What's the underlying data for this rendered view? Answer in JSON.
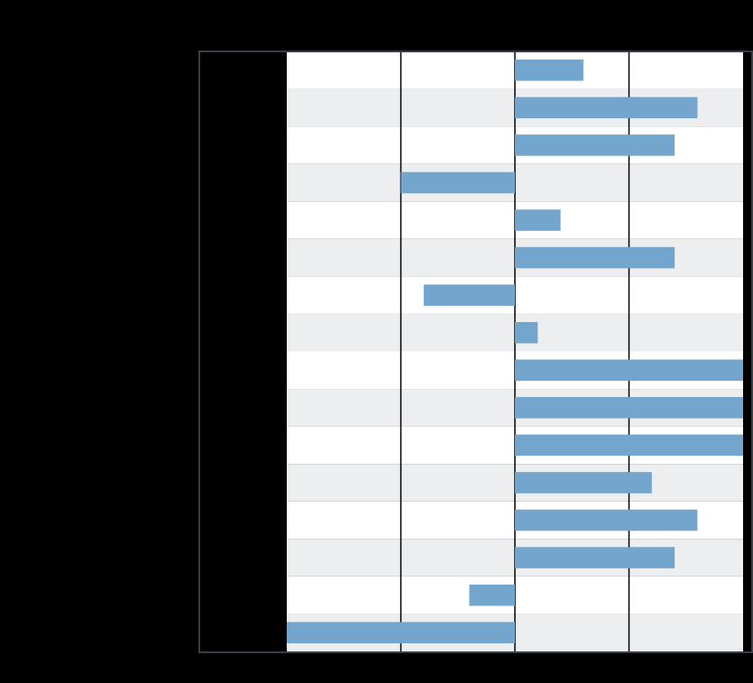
{
  "chart_data": {
    "type": "bar",
    "orientation": "horizontal",
    "title": "",
    "xlabel": "",
    "ylabel": "",
    "xlim": [
      -10,
      10
    ],
    "grid": true,
    "legend": "none",
    "categories": [
      "",
      "",
      "",
      "",
      "",
      "",
      "",
      "",
      "",
      "",
      "",
      "",
      "",
      "",
      "",
      ""
    ],
    "values": [
      3,
      8,
      7,
      -5,
      2,
      7,
      -4,
      1,
      10,
      10,
      10,
      6,
      8,
      7,
      -2,
      -10
    ]
  },
  "colors": {
    "bar": "#74a5cd",
    "band_light": "#ffffff",
    "band_dark": "#edeef0",
    "gridline": "#000000",
    "frame": "#3a3f47",
    "background": "#000000"
  }
}
